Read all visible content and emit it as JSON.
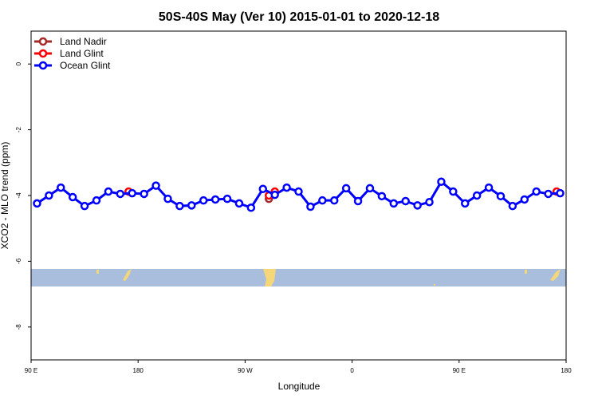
{
  "chart_data": {
    "type": "line",
    "title": "50S-40S May (Ver 10)   2015-01-01 to 2020-12-18",
    "x_label": "Longitude",
    "y_label": "XCO2 - MLO trend (ppm)",
    "xlim": [
      90,
      540
    ],
    "xticks": [
      {
        "value": 90,
        "label": "90 E"
      },
      180,
      {
        "value": 270,
        "label": "90 W"
      },
      {
        "value": 360,
        "label": "0"
      },
      {
        "value": 450,
        "label": "90 E"
      },
      {
        "value": 540,
        "label": "180"
      }
    ],
    "ylim": [
      -9,
      1
    ],
    "yticks": [
      -8,
      -6,
      -4,
      -2,
      0
    ],
    "legend": "top-left",
    "series": [
      {
        "name": "Land Nadir",
        "color": "#a52a2a",
        "x": [
          290
        ],
        "values": [
          -4.1
        ]
      },
      {
        "name": "Land Glint",
        "color": "#ff0000",
        "x": [
          172,
          290,
          295,
          532
        ],
        "values": [
          -3.88,
          -4.0,
          -3.88,
          -3.88
        ]
      },
      {
        "name": "Ocean Glint",
        "color": "#0000ff",
        "x": [
          95,
          105,
          115,
          125,
          135,
          145,
          155,
          165,
          175,
          185,
          195,
          205,
          215,
          225,
          235,
          245,
          255,
          265,
          275,
          285,
          295,
          305,
          315,
          325,
          335,
          345,
          355,
          365,
          375,
          385,
          395,
          405,
          415,
          425,
          435,
          445,
          455,
          465,
          475,
          485,
          495,
          505,
          515,
          525,
          535
        ],
        "values": [
          -4.24,
          -4.0,
          -3.76,
          -4.05,
          -4.32,
          -4.15,
          -3.88,
          -3.95,
          -3.93,
          -3.95,
          -3.7,
          -4.1,
          -4.32,
          -4.3,
          -4.15,
          -4.12,
          -4.1,
          -4.24,
          -4.37,
          -3.8,
          -3.98,
          -3.76,
          -3.88,
          -4.34,
          -4.15,
          -4.15,
          -3.78,
          -4.17,
          -3.78,
          -4.02,
          -4.24,
          -4.17,
          -4.3,
          -4.2,
          -3.58,
          -3.88,
          -4.24,
          -4.0,
          -3.76,
          -4.02,
          -4.32,
          -4.12,
          -3.88,
          -3.95,
          -3.93
        ]
      }
    ]
  }
}
